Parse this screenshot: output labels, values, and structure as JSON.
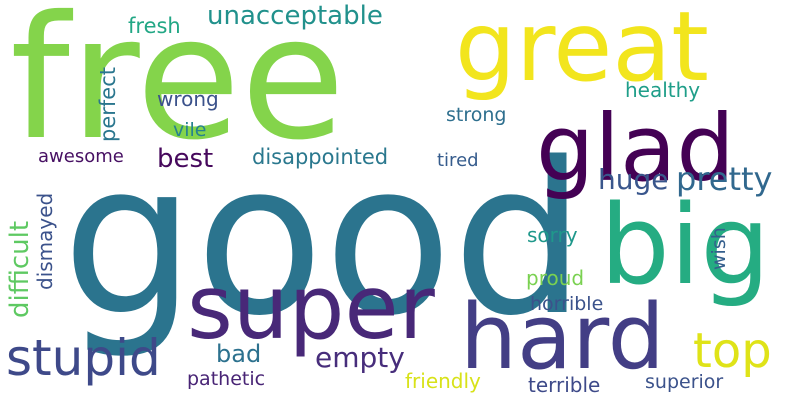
{
  "words": [
    {
      "text": "good",
      "color": "#2b748e",
      "vertical": false
    },
    {
      "text": "free",
      "color": "#84d44b",
      "vertical": false
    },
    {
      "text": "great",
      "color": "#f2e51d",
      "vertical": false
    },
    {
      "text": "glad",
      "color": "#440154",
      "vertical": false
    },
    {
      "text": "big",
      "color": "#25ac82",
      "vertical": false
    },
    {
      "text": "super",
      "color": "#482878",
      "vertical": false
    },
    {
      "text": "hard",
      "color": "#433e85",
      "vertical": false
    },
    {
      "text": "stupid",
      "color": "#3e4989",
      "vertical": false
    },
    {
      "text": "top",
      "color": "#dfe318",
      "vertical": false
    },
    {
      "text": "unacceptable",
      "color": "#21918c",
      "vertical": false
    },
    {
      "text": "pretty",
      "color": "#31688e",
      "vertical": false
    },
    {
      "text": "huge",
      "color": "#39568c",
      "vertical": false
    },
    {
      "text": "empty",
      "color": "#472d7b",
      "vertical": false
    },
    {
      "text": "best",
      "color": "#46085c",
      "vertical": false
    },
    {
      "text": "bad",
      "color": "#2c718e",
      "vertical": false
    },
    {
      "text": "fresh",
      "color": "#22a785",
      "vertical": false
    },
    {
      "text": "wrong",
      "color": "#3b528b",
      "vertical": false
    },
    {
      "text": "vile",
      "color": "#26828e",
      "vertical": false
    },
    {
      "text": "awesome",
      "color": "#471063",
      "vertical": false
    },
    {
      "text": "disappointed",
      "color": "#2a788e",
      "vertical": false
    },
    {
      "text": "tired",
      "color": "#365c8d",
      "vertical": false
    },
    {
      "text": "healthy",
      "color": "#1f9e89",
      "vertical": false
    },
    {
      "text": "strong",
      "color": "#2e6f8e",
      "vertical": false
    },
    {
      "text": "sorry",
      "color": "#1f988b",
      "vertical": false
    },
    {
      "text": "proud",
      "color": "#7ad151",
      "vertical": false
    },
    {
      "text": "horrible",
      "color": "#3b528b",
      "vertical": false
    },
    {
      "text": "pathetic",
      "color": "#482475",
      "vertical": false
    },
    {
      "text": "friendly",
      "color": "#d8e219",
      "vertical": false
    },
    {
      "text": "terrible",
      "color": "#3e4a89",
      "vertical": false
    },
    {
      "text": "superior",
      "color": "#3b528b",
      "vertical": false
    },
    {
      "text": "perfect",
      "color": "#2a768e",
      "vertical": true
    },
    {
      "text": "difficult",
      "color": "#5ec962",
      "vertical": true
    },
    {
      "text": "dismayed",
      "color": "#3b528b",
      "vertical": true
    },
    {
      "text": "wish",
      "color": "#355f8d",
      "vertical": true
    }
  ]
}
